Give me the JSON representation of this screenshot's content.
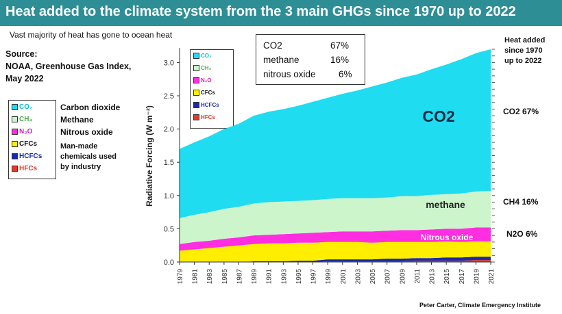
{
  "header": {
    "title": "Heat added to the climate system from the 3 main GHGs since 1970 up to 2022",
    "subtitle": "Vast majority of heat has gone to ocean  heat"
  },
  "source_lines": [
    "Source:",
    "NOAA, Greenhouse Gas Index,",
    "May 2022"
  ],
  "legend_descriptions": [
    "Carbon dioxide",
    "Methane",
    "Nitrous oxide",
    "Man-made",
    "chemicals used",
    "by industry"
  ],
  "percent_box": [
    {
      "name": "CO2",
      "value": "67%"
    },
    {
      "name": "methane",
      "value": "16%"
    },
    {
      "name": "nitrous oxide",
      "value": "6%"
    }
  ],
  "right_notes": {
    "heat_added": [
      "Heat added",
      "since 1970",
      "up to 2022"
    ],
    "co2": "CO2 67%",
    "ch4": "CH4 16%",
    "n2o": "N2O 6%"
  },
  "credit": "Peter Carter, Climate Emergency Institute",
  "chart_data": {
    "type": "area",
    "stacked": true,
    "ylabel": "Radiative Forcing (W m⁻²)",
    "xlabel": "",
    "ylim": [
      0,
      3.2
    ],
    "yticks": [
      "0.0",
      "0.5",
      "1.0",
      "1.5",
      "2.0",
      "2.5",
      "3.0"
    ],
    "x": [
      1979,
      1981,
      1983,
      1985,
      1987,
      1989,
      1991,
      1993,
      1995,
      1997,
      1999,
      2001,
      2003,
      2005,
      2007,
      2009,
      2011,
      2013,
      2015,
      2017,
      2019,
      2021
    ],
    "series": [
      {
        "name": "HFCs",
        "color": "#e03a2a",
        "values": [
          0.0,
          0.0,
          0.0,
          0.0,
          0.0,
          0.0,
          0.0,
          0.0,
          0.0,
          0.0,
          0.01,
          0.01,
          0.01,
          0.01,
          0.01,
          0.01,
          0.02,
          0.02,
          0.02,
          0.02,
          0.03,
          0.03
        ]
      },
      {
        "name": "HCFCs",
        "color": "#1a2aa8",
        "values": [
          0.0,
          0.0,
          0.0,
          0.0,
          0.0,
          0.01,
          0.01,
          0.01,
          0.02,
          0.02,
          0.03,
          0.03,
          0.03,
          0.03,
          0.04,
          0.04,
          0.04,
          0.04,
          0.05,
          0.05,
          0.05,
          0.05
        ]
      },
      {
        "name": "CFCs",
        "color": "#ffee00",
        "values": [
          0.17,
          0.19,
          0.21,
          0.23,
          0.25,
          0.26,
          0.27,
          0.27,
          0.27,
          0.27,
          0.26,
          0.26,
          0.26,
          0.25,
          0.25,
          0.25,
          0.24,
          0.24,
          0.24,
          0.23,
          0.23,
          0.23
        ]
      },
      {
        "name": "N2O",
        "color": "#ff2ee0",
        "values": [
          0.1,
          0.11,
          0.11,
          0.12,
          0.12,
          0.13,
          0.13,
          0.14,
          0.14,
          0.15,
          0.15,
          0.16,
          0.16,
          0.17,
          0.17,
          0.18,
          0.18,
          0.19,
          0.19,
          0.2,
          0.21,
          0.21
        ]
      },
      {
        "name": "CH4",
        "color": "#ccf5cc",
        "values": [
          0.39,
          0.41,
          0.43,
          0.45,
          0.46,
          0.48,
          0.49,
          0.49,
          0.49,
          0.49,
          0.5,
          0.5,
          0.5,
          0.5,
          0.5,
          0.51,
          0.51,
          0.52,
          0.52,
          0.53,
          0.54,
          0.55
        ]
      },
      {
        "name": "CO2",
        "color": "#1fdcf0",
        "values": [
          1.04,
          1.09,
          1.14,
          1.2,
          1.25,
          1.32,
          1.36,
          1.39,
          1.43,
          1.48,
          1.52,
          1.57,
          1.62,
          1.68,
          1.73,
          1.78,
          1.83,
          1.89,
          1.95,
          2.02,
          2.08,
          2.13
        ]
      }
    ],
    "legend_entries": [
      {
        "label": "CO₂",
        "color": "#1fdcf0",
        "text_color": "#00bcd4"
      },
      {
        "label": "CH₄",
        "color": "#ccf5cc",
        "text_color": "#4caf50"
      },
      {
        "label": "N₂O",
        "color": "#ff2ee0",
        "text_color": "#d020c0"
      },
      {
        "label": "CFCs",
        "color": "#ffee00",
        "text_color": "#111111"
      },
      {
        "label": "HCFCs",
        "color": "#1a2aa8",
        "text_color": "#1a2aa8"
      },
      {
        "label": "HFCs",
        "color": "#e03a2a",
        "text_color": "#e03a2a"
      }
    ],
    "annotations": [
      {
        "text": "CO2",
        "color": "#0a2a45"
      },
      {
        "text": "methane",
        "color": "#222222"
      },
      {
        "text": "Nitrous oxide",
        "color": "#ffffff"
      }
    ]
  }
}
